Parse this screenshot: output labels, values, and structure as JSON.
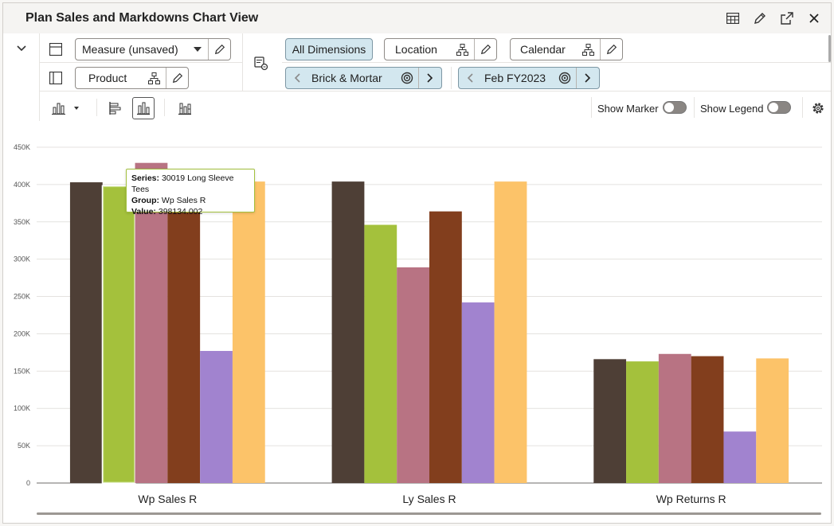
{
  "window": {
    "title": "Plan Sales and Markdowns Chart View",
    "icons": [
      "table-icon",
      "edit-pencil-icon",
      "expand-icon",
      "close-icon"
    ]
  },
  "toolbar": {
    "measure_label": "Measure (unsaved)",
    "product_label": "Product",
    "all_dimensions_label": "All Dimensions",
    "location_label": "Location",
    "calendar_label": "Calendar",
    "location_value": "Brick & Mortar",
    "calendar_value": "Feb FY2023",
    "show_marker_label": "Show Marker",
    "show_legend_label": "Show Legend",
    "show_marker_on": false,
    "show_legend_on": false
  },
  "tooltip": {
    "series_key": "Series:",
    "series_value": "30019 Long Sleeve Tees",
    "group_key": "Group:",
    "group_value": "Wp Sales R",
    "value_key": "Value:",
    "value_value": "398134.002"
  },
  "chart_data": {
    "type": "bar",
    "categories": [
      "Wp Sales R",
      "Ly Sales R",
      "Wp Returns R"
    ],
    "ylim": [
      0,
      450000
    ],
    "yticks": [
      "0",
      "50K",
      "100K",
      "150K",
      "200K",
      "250K",
      "300K",
      "350K",
      "400K",
      "450K"
    ],
    "grid": true,
    "legend": "none",
    "series": [
      {
        "color": "#4e3f36",
        "values": [
          403000,
          404000,
          166000
        ]
      },
      {
        "name": "30019 Long Sleeve Tees",
        "color": "#a4c13c",
        "values": [
          398134.002,
          346000,
          163000
        ]
      },
      {
        "color": "#b87383",
        "values": [
          429000,
          289000,
          173000
        ]
      },
      {
        "color": "#823e1d",
        "values": [
          391000,
          364000,
          170000
        ]
      },
      {
        "color": "#a183cf",
        "values": [
          177000,
          242000,
          69000
        ]
      },
      {
        "color": "#fcc369",
        "values": [
          404000,
          404000,
          167000
        ]
      }
    ]
  }
}
